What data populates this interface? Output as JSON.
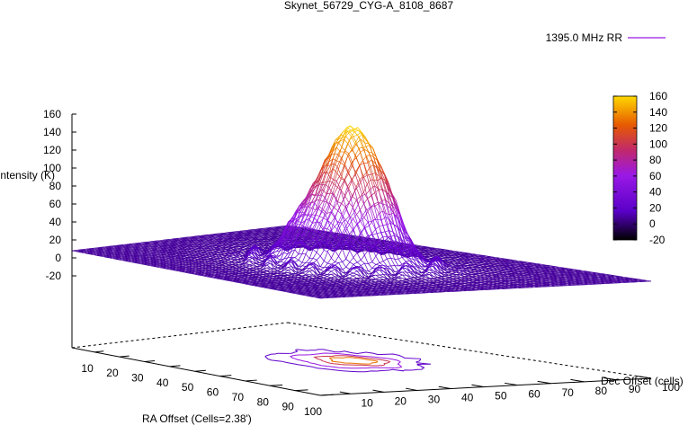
{
  "chart_data": {
    "type": "surface",
    "title": "Skynet_56729_CYG-A_8108_8687",
    "xlabel": "RA Offset (Cells=2.38')",
    "ylabel": "Dec Offset (cells)",
    "zlabel": "Intensity (K)",
    "legend": {
      "entries": [
        "1395.0 MHz RR"
      ],
      "placement": "top-right"
    },
    "x_ticks": [
      "10",
      "20",
      "30",
      "40",
      "50",
      "60",
      "70",
      "80",
      "90",
      "100"
    ],
    "y_ticks": [
      "10",
      "20",
      "30",
      "40",
      "50",
      "60",
      "70",
      "80",
      "90",
      "100"
    ],
    "z_ticks": [
      "160",
      "140",
      "120",
      "100",
      "80",
      "60",
      "40",
      "20",
      "0",
      "-20"
    ],
    "zlim": [
      -20,
      160
    ],
    "xlim": [
      1,
      100
    ],
    "ylim": [
      1,
      100
    ],
    "colorbar": {
      "ticks": [
        "160",
        "140",
        "120",
        "100",
        "80",
        "60",
        "40",
        "20",
        "0",
        "-20"
      ],
      "range": [
        -20,
        160
      ],
      "palette": [
        "#000000",
        "#5a00c8",
        "#9a19e6",
        "#c0286e",
        "#e65a00",
        "#ffd900"
      ]
    },
    "surface": {
      "baseline": 8,
      "base_disk": {
        "amplitude": 42,
        "center_x": 52,
        "center_y": 52,
        "radius": 15
      },
      "peak": {
        "amplitude": 110,
        "center_x": 52,
        "center_y": 56,
        "sigma": 7
      },
      "ring": {
        "amplitude": 10,
        "radius": 22,
        "width": 3
      }
    },
    "contour_levels": [
      20,
      60,
      100,
      130
    ]
  }
}
